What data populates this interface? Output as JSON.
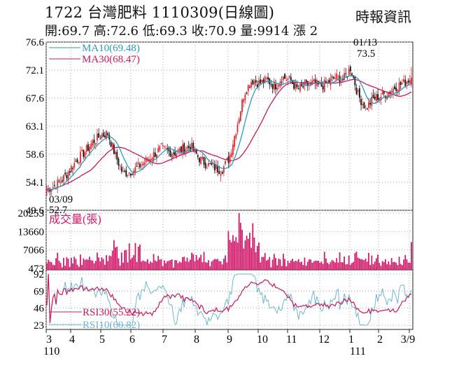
{
  "header": {
    "title": "1722  台灣肥料 1110309(日線圖)",
    "ohlc": "開:69.7 高:72.6 低:69.3 收:70.9 量:9914 漲 2",
    "source": "時報資訊"
  },
  "colors": {
    "up": "#e3282f",
    "down": "#111111",
    "ma10": "#2b9bb8",
    "ma30": "#c6195e",
    "volume": "#d11a6b",
    "rsi30": "#c6195e",
    "rsi10": "#6fb6cf",
    "grid": "#aaaaaa"
  },
  "chart_data": [
    {
      "type": "candlestick",
      "name": "price",
      "y_ticks": [
        "76.6",
        "72.1",
        "67.6",
        "63.1",
        "58.6",
        "54.1",
        "49.6"
      ],
      "ylim": [
        49.6,
        76.6
      ],
      "x_ticks": [
        "3",
        "4",
        "5",
        "6",
        "7",
        "8",
        "9",
        "10",
        "11",
        "12",
        "1",
        "2",
        "3/9"
      ],
      "x_sub": [
        "110",
        "111"
      ],
      "last_ohlc": {
        "open": 69.7,
        "high": 72.6,
        "low": 69.3,
        "close": 70.9
      },
      "anchors": [
        {
          "date": "03/09",
          "value": 52.7
        },
        {
          "date": "01/13",
          "value": 73.5
        }
      ],
      "legend": [
        {
          "name": "MA10",
          "value": "(69.48)"
        },
        {
          "name": "MA30",
          "value": "(68.47)"
        }
      ],
      "close_profile": [
        53.0,
        53.5,
        54.5,
        56.0,
        57.8,
        59.0,
        60.5,
        61.5,
        62.0,
        58.5,
        55.5,
        55.8,
        56.5,
        57.5,
        58.5,
        59.5,
        59.0,
        58.8,
        59.5,
        59.8,
        58.0,
        57.0,
        56.5,
        56.0,
        58.0,
        63.0,
        68.5,
        70.5,
        70.0,
        70.5,
        69.5,
        71.0,
        70.5,
        69.0,
        69.5,
        70.0,
        69.5,
        70.0,
        71.0,
        70.5,
        72.5,
        68.0,
        66.0,
        67.5,
        68.0,
        68.5,
        69.5,
        70.0,
        70.9
      ]
    },
    {
      "type": "bar",
      "name": "成交量(張)",
      "y_ticks": [
        "20253",
        "13660",
        "7066",
        "473"
      ],
      "ylim": [
        473,
        20253
      ],
      "last_value": 9914,
      "peak_date_region": "10"
    },
    {
      "type": "line",
      "name": "RSI",
      "y_ticks": [
        "92",
        "69",
        "46",
        "23"
      ],
      "ylim": [
        23,
        92
      ],
      "series": [
        {
          "name": "RSI30",
          "value": "(55.22)"
        },
        {
          "name": "RSI10",
          "value": "(60.82)"
        }
      ]
    }
  ]
}
